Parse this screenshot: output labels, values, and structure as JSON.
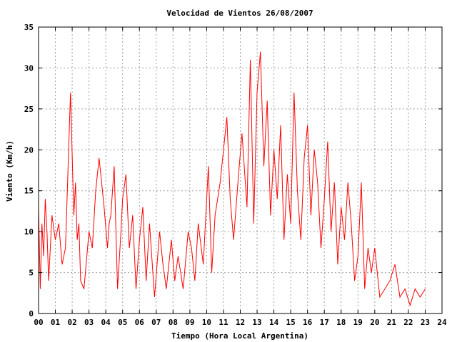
{
  "chart_data": {
    "type": "line",
    "title": "Velocidad de Vientos 26/08/2007",
    "xlabel": "Tiempo (Hora Local Argentina)",
    "ylabel": "Viento (Km/h)",
    "xlim": [
      0,
      24
    ],
    "ylim": [
      0,
      35
    ],
    "x_ticks": [
      "00",
      "01",
      "02",
      "03",
      "04",
      "05",
      "06",
      "07",
      "08",
      "09",
      "10",
      "11",
      "12",
      "13",
      "14",
      "15",
      "16",
      "17",
      "18",
      "19",
      "20",
      "21",
      "22",
      "23",
      "24"
    ],
    "y_ticks": [
      0,
      5,
      10,
      15,
      20,
      25,
      30,
      35
    ],
    "grid": true,
    "line_color": "#ff0000",
    "series": [
      {
        "x": [
          0.0,
          0.1,
          0.2,
          0.3,
          0.4,
          0.5,
          0.6,
          0.8,
          1.0,
          1.2,
          1.4,
          1.6,
          1.9,
          2.1,
          2.2,
          2.3,
          2.4,
          2.5,
          2.7,
          3.0,
          3.2,
          3.4,
          3.6,
          3.9,
          4.1,
          4.2,
          4.3,
          4.5,
          4.7,
          4.9,
          5.0,
          5.2,
          5.4,
          5.6,
          5.8,
          6.0,
          6.2,
          6.4,
          6.6,
          6.9,
          7.2,
          7.4,
          7.6,
          7.9,
          8.1,
          8.3,
          8.6,
          8.9,
          9.1,
          9.3,
          9.5,
          9.8,
          10.1,
          10.3,
          10.5,
          10.8,
          11.0,
          11.2,
          11.4,
          11.6,
          11.9,
          12.1,
          12.4,
          12.6,
          12.8,
          13.0,
          13.2,
          13.4,
          13.6,
          13.8,
          14.0,
          14.2,
          14.4,
          14.6,
          14.8,
          15.0,
          15.2,
          15.4,
          15.6,
          15.8,
          16.0,
          16.2,
          16.4,
          16.6,
          16.8,
          17.0,
          17.2,
          17.4,
          17.6,
          17.8,
          18.0,
          18.2,
          18.4,
          18.6,
          18.8,
          19.0,
          19.2,
          19.4,
          19.6,
          19.8,
          20.0,
          20.3,
          20.6,
          20.9,
          21.2,
          21.5,
          21.8,
          22.1,
          22.4,
          22.7,
          23.0
        ],
        "y": [
          13,
          3,
          11,
          7,
          14,
          10,
          4,
          12,
          9,
          11,
          6,
          8,
          27,
          12,
          16,
          9,
          11,
          4,
          3,
          10,
          8,
          15,
          19,
          13,
          8,
          11,
          12,
          18,
          3,
          10,
          14,
          17,
          8,
          12,
          3,
          9,
          13,
          4,
          11,
          2,
          10,
          6,
          3,
          9,
          4,
          7,
          3,
          10,
          8,
          4,
          11,
          6,
          18,
          5,
          12,
          16,
          20,
          24,
          14,
          9,
          17,
          22,
          13,
          31,
          11,
          27,
          32,
          18,
          26,
          12,
          20,
          14,
          23,
          9,
          17,
          11,
          27,
          15,
          9,
          19,
          23,
          12,
          20,
          16,
          8,
          14,
          21,
          10,
          16,
          6,
          13,
          9,
          16,
          11,
          4,
          7,
          16,
          3,
          8,
          5,
          8,
          2,
          3,
          4,
          6,
          2,
          3,
          1,
          3,
          2,
          3
        ]
      }
    ]
  }
}
